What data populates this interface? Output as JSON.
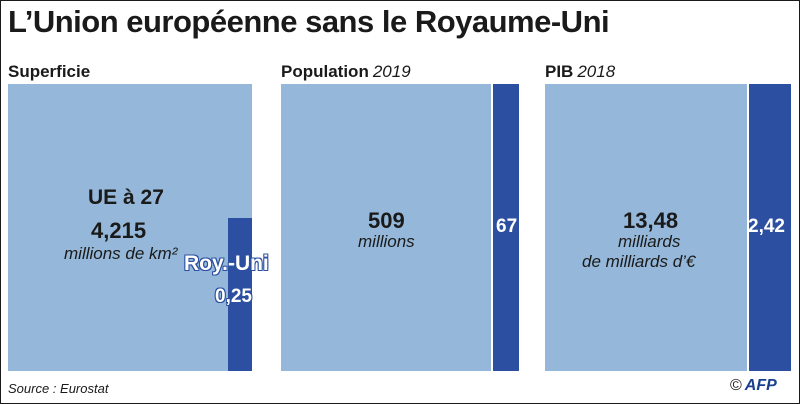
{
  "title": "L’Union européenne sans le Royaume-Uni",
  "panels": [
    {
      "label": "Superficie",
      "year": "",
      "eu_label": "UE à 27",
      "eu_value_text": "4,215",
      "eu_unit_lines": [
        "millions de km²"
      ],
      "uk_label": "Roy.-Uni",
      "uk_value_text": "0,25"
    },
    {
      "label": "Population",
      "year": "2019",
      "eu_value_text": "509",
      "eu_unit_lines": [
        "millions"
      ],
      "uk_value_text": "67"
    },
    {
      "label": "PIB",
      "year": "2018",
      "eu_value_text": "13,48",
      "eu_unit_lines": [
        "milliards",
        "de milliards d’€"
      ],
      "uk_value_text": "2,42"
    }
  ],
  "chart_data": [
    {
      "type": "bar",
      "title": "Superficie",
      "unit": "millions de km²",
      "categories": [
        "UE à 27",
        "Roy.-Uni"
      ],
      "values": [
        4.215,
        0.25
      ]
    },
    {
      "type": "bar",
      "title": "Population 2019",
      "unit": "millions",
      "categories": [
        "UE à 27",
        "Roy.-Uni"
      ],
      "values": [
        509,
        67
      ]
    },
    {
      "type": "bar",
      "title": "PIB 2018",
      "unit": "milliards de milliards d’€",
      "categories": [
        "UE à 27",
        "Roy.-Uni"
      ],
      "values": [
        13.48,
        2.42
      ]
    }
  ],
  "footer": {
    "source": "Source : Eurostat",
    "copyright": "©",
    "agency": "AFP"
  },
  "colors": {
    "eu": "#95b8da",
    "uk": "#2c4fa1"
  }
}
